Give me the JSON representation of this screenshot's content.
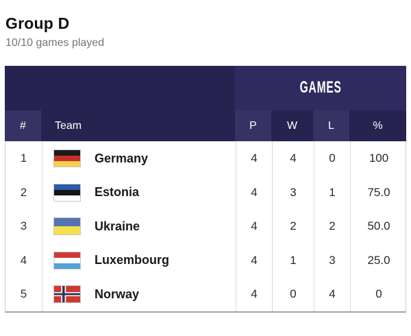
{
  "theme": {
    "navy-dark": "#272350",
    "navy-mid": "#2f2b5e",
    "navy-light": "#363264",
    "divider": "#d9d9de",
    "outer-border": "#cfcfd4",
    "bottom-border": "#a3a3a8",
    "title-color": "#121212",
    "subtitle-color": "#74747a",
    "body-text": "#2a2a2e"
  },
  "header": {
    "title": "Group D",
    "subtitle": "10/10 games played"
  },
  "table": {
    "group_header": {
      "games_label": "GAMES"
    },
    "columns": {
      "rank": "#",
      "team": "Team",
      "p": "P",
      "w": "W",
      "l": "L",
      "pct": "%"
    },
    "rows": [
      {
        "rank": "1",
        "team": "Germany",
        "p": "4",
        "w": "4",
        "l": "0",
        "pct": "100",
        "flag": {
          "type": "stripes",
          "colors": [
            "#1a1a1a",
            "#c52f2a",
            "#f5d14d"
          ]
        }
      },
      {
        "rank": "2",
        "team": "Estonia",
        "p": "4",
        "w": "3",
        "l": "1",
        "pct": "75.0",
        "flag": {
          "type": "stripes",
          "colors": [
            "#2d5ba8",
            "#151515",
            "#ffffff"
          ]
        }
      },
      {
        "rank": "3",
        "team": "Ukraine",
        "p": "4",
        "w": "2",
        "l": "2",
        "pct": "50.0",
        "flag": {
          "type": "stripes",
          "colors": [
            "#5572b5",
            "#f2e04e"
          ]
        }
      },
      {
        "rank": "4",
        "team": "Luxembourg",
        "p": "4",
        "w": "1",
        "l": "3",
        "pct": "25.0",
        "flag": {
          "type": "stripes",
          "colors": [
            "#ce3a36",
            "#ffffff",
            "#55a3d8"
          ]
        }
      },
      {
        "rank": "5",
        "team": "Norway",
        "p": "4",
        "w": "0",
        "l": "4",
        "pct": "0",
        "flag": {
          "type": "nordic",
          "bg": "#cd3a2e",
          "cross": "#ffffff",
          "inner": "#32325c"
        }
      }
    ]
  }
}
